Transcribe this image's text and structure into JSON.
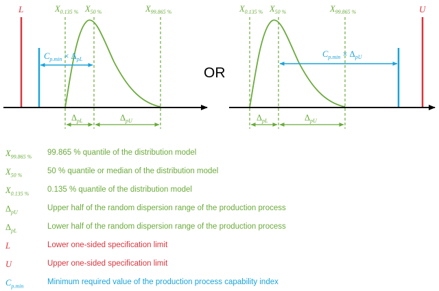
{
  "colors": {
    "green": "#6aaa3a",
    "red": "#d9343c",
    "blue": "#1aa3d8",
    "axis": "#000000"
  },
  "diagram": {
    "left": {
      "spec_limit": {
        "base": "L"
      },
      "x_low": {
        "base": "X",
        "sub": "0.135 %"
      },
      "x_mid": {
        "base": "X",
        "sub": "50 %"
      },
      "x_high": {
        "base": "X",
        "sub": "99.865 %"
      },
      "cap": {
        "base": "C",
        "sub": "p.min",
        "op": " × Δ",
        "op_sub": "pL"
      },
      "delta_low": {
        "base": "Δ",
        "sub": "pL"
      },
      "delta_high": {
        "base": "Δ",
        "sub": "pU"
      }
    },
    "or_label": "OR",
    "right": {
      "spec_limit": {
        "base": "U"
      },
      "x_low": {
        "base": "X",
        "sub": "0.135 %"
      },
      "x_mid": {
        "base": "X",
        "sub": "50 %"
      },
      "x_high": {
        "base": "X",
        "sub": "99.865 %"
      },
      "cap": {
        "base": "C",
        "sub": "p.min",
        "op": " × Δ",
        "op_sub": "pU"
      },
      "delta_low": {
        "base": "Δ",
        "sub": "pL"
      },
      "delta_high": {
        "base": "Δ",
        "sub": "pU"
      }
    }
  },
  "legend": [
    {
      "base": "X",
      "sub": "99.865 %",
      "text": "99.865 % quantile of the distribution model",
      "color": "green"
    },
    {
      "base": "X",
      "sub": "50 %",
      "text": "50 % quantile or median of the distribution model",
      "color": "green"
    },
    {
      "base": "X",
      "sub": "0.135 %",
      "text": "0.135 % quantile of the distribution model",
      "color": "green"
    },
    {
      "base": "Δ",
      "sub": "pU",
      "text": "Upper half of the random dispersion range of the production process",
      "color": "green"
    },
    {
      "base": "Δ",
      "sub": "pL",
      "text": "Lower half of the random dispersion range of the production process",
      "color": "green"
    },
    {
      "base": "L",
      "sub": "",
      "text": "Lower one-sided specification limit",
      "color": "red"
    },
    {
      "base": "U",
      "sub": "",
      "text": "Upper one-sided specification limit",
      "color": "red"
    },
    {
      "base": "C",
      "sub": "p.min",
      "text": "Minimum required value of the production process capability index",
      "color": "blue"
    }
  ]
}
